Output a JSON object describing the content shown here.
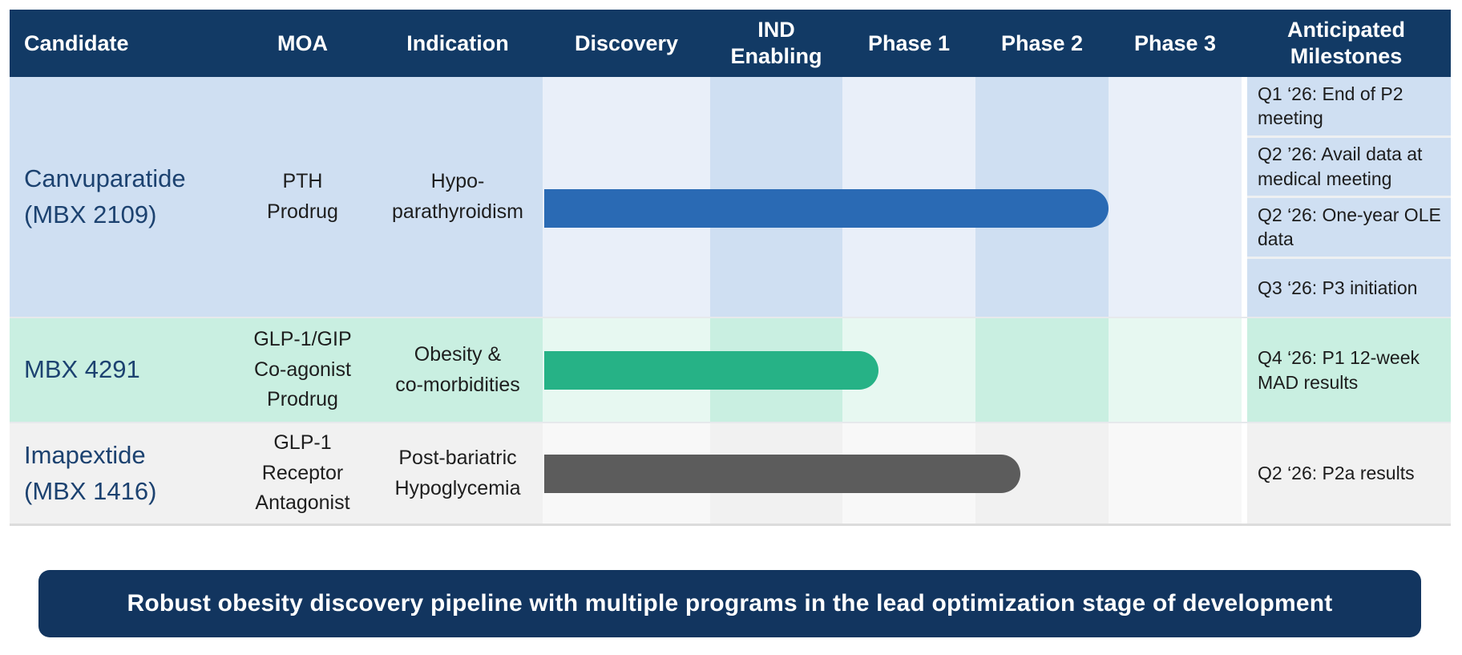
{
  "chart_data": {
    "type": "table",
    "title": "Clinical pipeline gantt table",
    "columns": [
      "Candidate",
      "MOA",
      "Indication",
      "Discovery",
      "IND Enabling",
      "Phase 1",
      "Phase 2",
      "Phase 3",
      "Anticipated Milestones"
    ],
    "phases": [
      "Discovery",
      "IND Enabling",
      "Phase 1",
      "Phase 2",
      "Phase 3"
    ],
    "rows": [
      {
        "candidate": "Canvuparatide (MBX 2109)",
        "candidate_lines": [
          "Canvuparatide",
          "(MBX 2109)"
        ],
        "moa": "PTH Prodrug",
        "moa_lines": [
          "PTH",
          "Prodrug"
        ],
        "indication": "Hypo-parathyroidism",
        "indication_lines": [
          "Hypo-",
          "parathyroidism"
        ],
        "bar": {
          "start": "Discovery",
          "end": "Phase 2 complete",
          "color": "#2a6ab4"
        },
        "milestones": [
          "Q1 ‘26: End of P2 meeting",
          "Q2 ’26: Avail data at medical meeting",
          "Q2 ‘26: One-year OLE data",
          "Q3 ‘26: P3 initiation"
        ]
      },
      {
        "candidate": "MBX 4291",
        "candidate_lines": [
          "MBX 4291"
        ],
        "moa": "GLP-1/GIP Co-agonist Prodrug",
        "moa_lines": [
          "GLP-1/GIP",
          "Co-agonist",
          "Prodrug"
        ],
        "indication": "Obesity & co-morbidities",
        "indication_lines": [
          "Obesity &",
          "co-morbidities"
        ],
        "bar": {
          "start": "Discovery",
          "end": "early Phase 1",
          "color": "#26b286"
        },
        "milestones": [
          "Q4 ‘26: P1 12-week MAD results"
        ]
      },
      {
        "candidate": "Imapextide (MBX 1416)",
        "candidate_lines": [
          "Imapextide",
          "(MBX 1416)"
        ],
        "moa": "GLP-1 Receptor Antagonist",
        "moa_lines": [
          "GLP-1",
          "Receptor",
          "Antagonist"
        ],
        "indication": "Post-bariatric Hypoglycemia",
        "indication_lines": [
          "Post-bariatric",
          "Hypoglycemia"
        ],
        "bar": {
          "start": "Discovery",
          "end": "early Phase 2",
          "color": "#5c5c5c"
        },
        "milestones": [
          "Q2 ‘26: P2a results"
        ]
      }
    ]
  },
  "banner": {
    "text": "Robust obesity discovery pipeline with multiple programs in the lead optimization stage of development"
  },
  "colors": {
    "header_navy": "#123a65",
    "banner_navy": "#12355f",
    "row1_tint": "#cfdff2",
    "row1_tint_light": "#e9eff9",
    "row2_tint": "#c9efe1",
    "row2_tint_light": "#e7f8f1",
    "row3_tint": "#f1f1f1",
    "row3_tint_light": "#f8f8f8",
    "bar_blue": "#2a6ab4",
    "bar_green": "#26b286",
    "bar_gray": "#5c5c5c",
    "candidate_text": "#1c4270"
  }
}
